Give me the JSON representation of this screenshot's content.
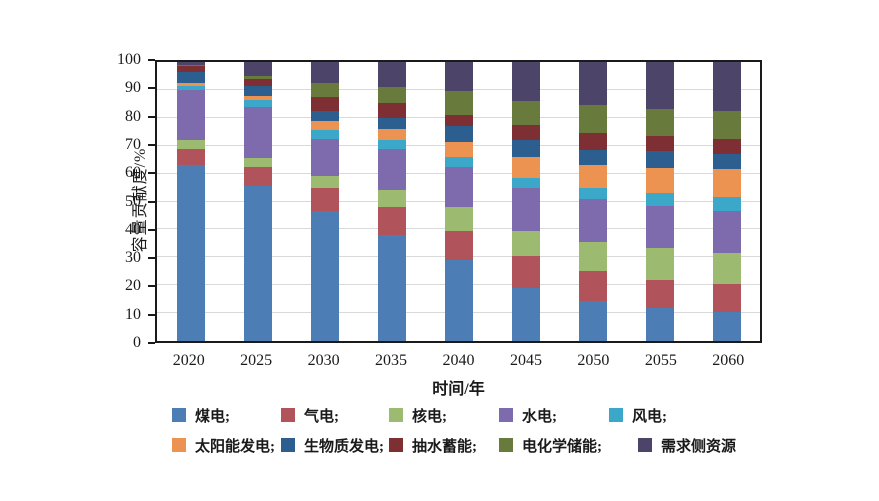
{
  "chart_data": {
    "type": "bar",
    "stacked": true,
    "title": "",
    "xlabel": "时间/年",
    "ylabel": "容量贡献度/%",
    "categories": [
      "2020",
      "2025",
      "2030",
      "2035",
      "2040",
      "2045",
      "2050",
      "2055",
      "2060"
    ],
    "ylim": [
      0,
      100
    ],
    "y_ticks": [
      0,
      10,
      20,
      30,
      40,
      50,
      60,
      70,
      80,
      90,
      100
    ],
    "grid": "horizontal",
    "legend_position": "bottom",
    "series": [
      {
        "name": "煤电",
        "color": "#4d7db5",
        "values": [
          63,
          55.5,
          46.5,
          38,
          29,
          19,
          14.5,
          12,
          10.5
        ]
      },
      {
        "name": "气电",
        "color": "#b1535a",
        "values": [
          6,
          7,
          8.5,
          10,
          10.5,
          11.5,
          10.5,
          10,
          10
        ]
      },
      {
        "name": "核电",
        "color": "#9cba70",
        "values": [
          3,
          3,
          4,
          6,
          8.5,
          9,
          10.5,
          11.5,
          11
        ]
      },
      {
        "name": "水电",
        "color": "#7e6bad",
        "values": [
          18,
          18.5,
          13.5,
          15,
          14.5,
          15.5,
          15.5,
          15,
          15
        ]
      },
      {
        "name": "风电",
        "color": "#3ba7c9",
        "values": [
          1.5,
          2.5,
          3,
          3,
          3.5,
          3.5,
          4,
          4.5,
          5
        ]
      },
      {
        "name": "太阳能发电",
        "color": "#ec9351",
        "values": [
          1,
          1.5,
          3.5,
          4,
          5.5,
          7.5,
          8,
          9,
          10
        ]
      },
      {
        "name": "生物质发电",
        "color": "#2c5e8f",
        "values": [
          4,
          3.5,
          3.5,
          4,
          5.5,
          6,
          5.5,
          6,
          5.5
        ]
      },
      {
        "name": "抽水蓄能",
        "color": "#7d2f33",
        "values": [
          2,
          2.5,
          5,
          5.5,
          4,
          5.5,
          6,
          5.5,
          5.5
        ]
      },
      {
        "name": "电化学储能",
        "color": "#697a3d",
        "values": [
          0.5,
          1,
          5,
          5.5,
          8.5,
          8.5,
          10,
          9.5,
          10
        ]
      },
      {
        "name": "需求侧资源",
        "color": "#4d4569",
        "values": [
          1,
          5,
          7.5,
          9,
          10.5,
          14,
          15.5,
          17,
          17.5
        ]
      }
    ]
  },
  "legend": {
    "rows": [
      {
        "labels": [
          "煤电;",
          "气电;",
          "核电;",
          "水电;",
          "风电;"
        ],
        "series_index": [
          0,
          1,
          2,
          3,
          4
        ],
        "x_offsets": [
          172,
          281,
          389,
          499,
          609
        ],
        "y": 406
      },
      {
        "labels": [
          "太阳能发电;",
          "生物质发电;",
          "抽水蓄能;",
          "电化学储能;",
          "需求侧资源"
        ],
        "series_index": [
          5,
          6,
          7,
          8,
          9
        ],
        "x_offsets": [
          172,
          281,
          389,
          499,
          638
        ],
        "y": 436
      }
    ]
  },
  "axes": {
    "x_title": "时间/年",
    "y_title": "容量贡献度/%"
  }
}
